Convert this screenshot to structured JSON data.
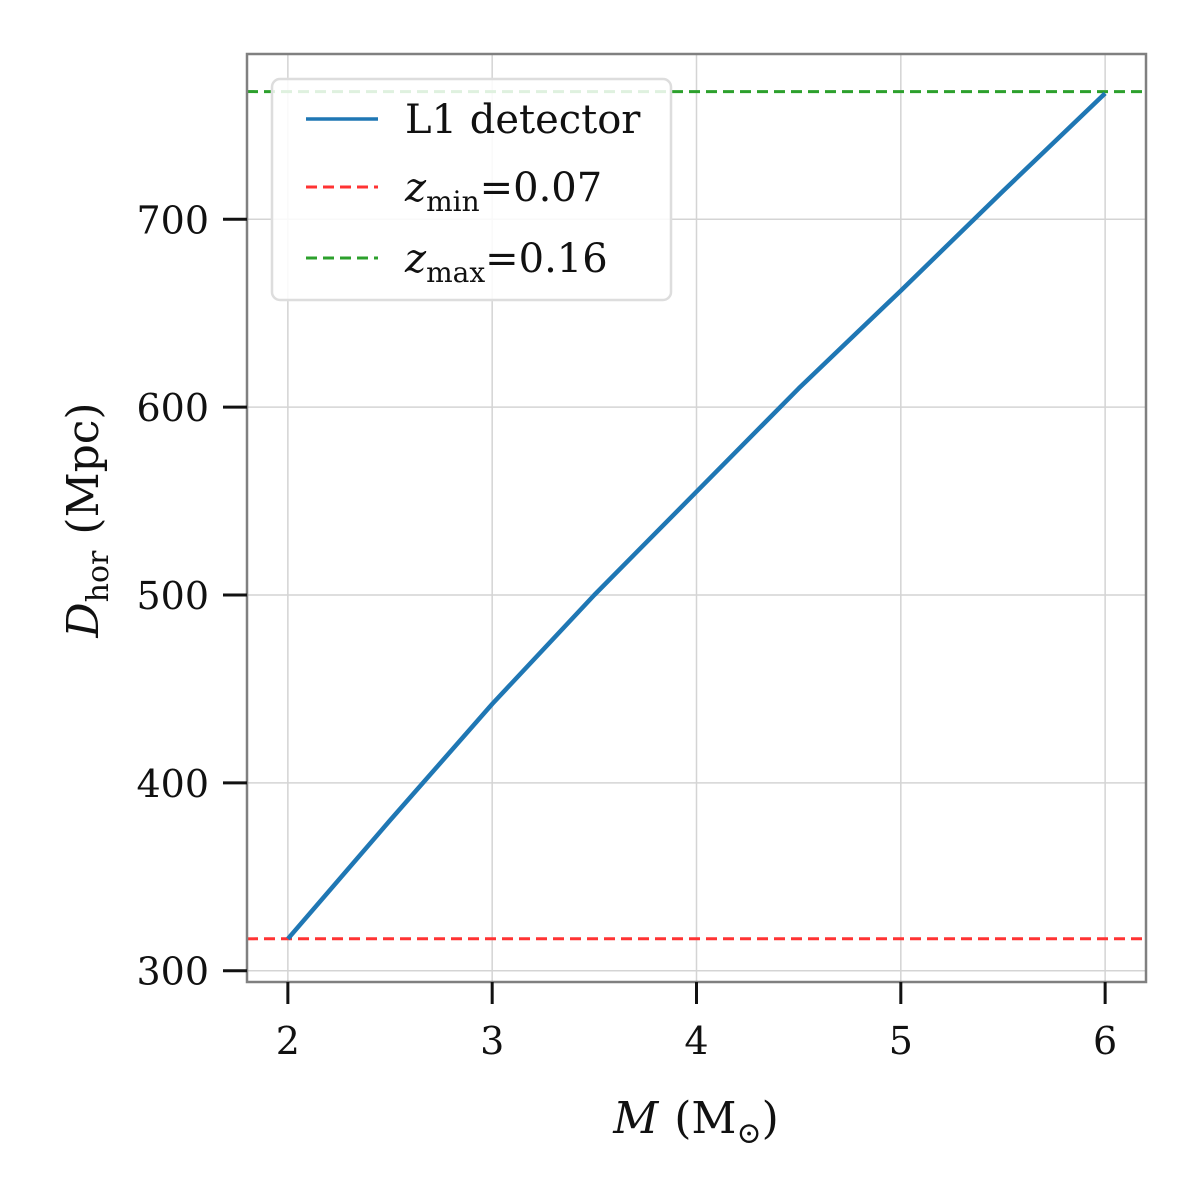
{
  "chart_data": {
    "type": "line",
    "title": "",
    "x_axis": {
      "label_symbol": "M",
      "label_unit": "(M",
      "label_unit_sub": "⊙",
      "label_close": ")",
      "range": [
        1.8,
        6.2
      ],
      "ticks": [
        2,
        3,
        4,
        5,
        6
      ]
    },
    "y_axis": {
      "label_symbol": "D",
      "label_sub": "hor",
      "label_unit": "(Mpc)",
      "range": [
        294,
        788
      ],
      "ticks": [
        300,
        400,
        500,
        600,
        700
      ]
    },
    "grid": true,
    "legend": {
      "placement": "upper-left",
      "entries": [
        {
          "id": "l1",
          "text": "L1 detector",
          "style": "solid",
          "color": "#1f77b4"
        },
        {
          "id": "zmin",
          "sym": "z",
          "sub": "min",
          "text": "=0.07",
          "style": "dashed",
          "color": "#ff3333"
        },
        {
          "id": "zmax",
          "sym": "z",
          "sub": "max",
          "text": "=0.16",
          "style": "dashed",
          "color": "#2ca02c"
        }
      ]
    },
    "series": [
      {
        "name": "L1 detector",
        "color": "#1f77b4",
        "x": [
          2.0,
          2.5,
          3.0,
          3.5,
          4.0,
          4.5,
          5.0,
          5.5,
          6.0
        ],
        "y": [
          317,
          380,
          442,
          500,
          555,
          610,
          662,
          715,
          767
        ]
      }
    ],
    "hlines": [
      {
        "name": "z_min=0.07",
        "y": 317,
        "color": "#ff3333"
      },
      {
        "name": "z_max=0.16",
        "y": 768,
        "color": "#2ca02c"
      }
    ]
  }
}
